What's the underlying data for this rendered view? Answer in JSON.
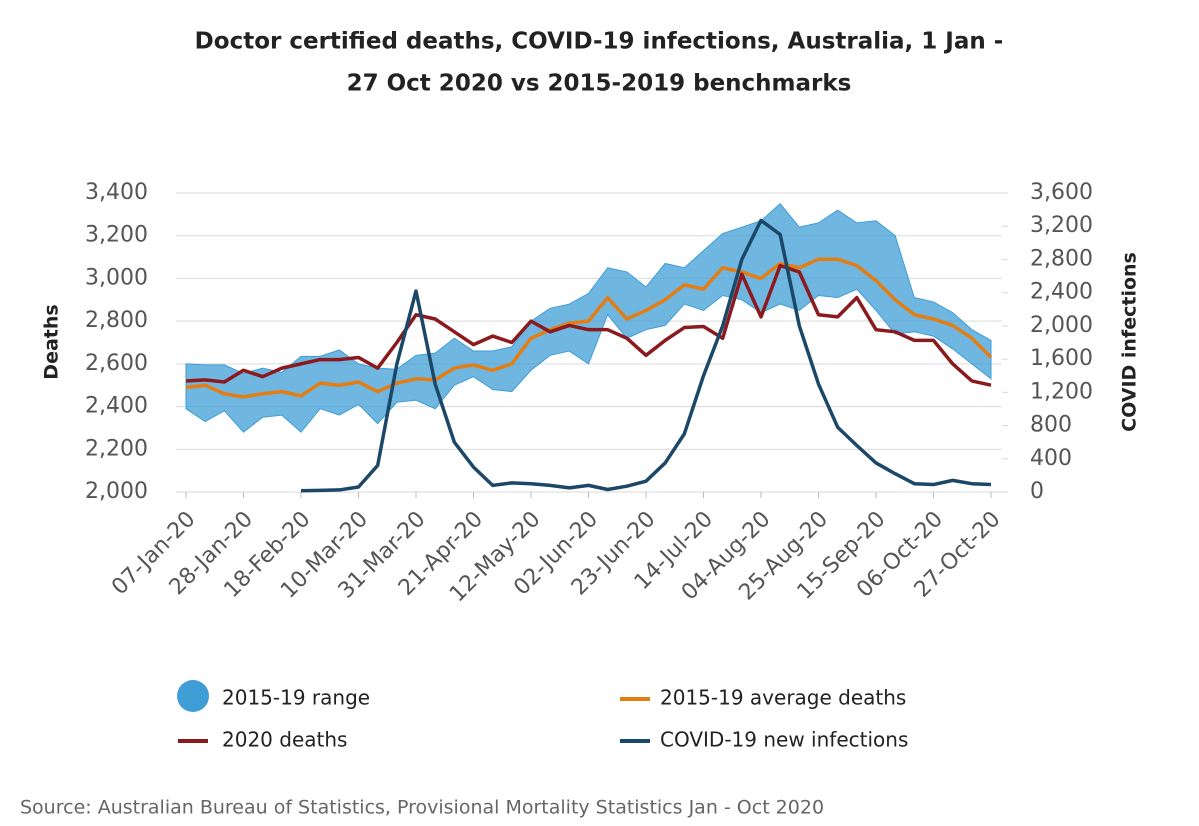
{
  "chart_data": {
    "type": "line",
    "title": "Doctor certified deaths, COVID-19 infections, Australia, 1 Jan -",
    "title_line2": "27 Oct 2020 vs 2015-2019 benchmarks",
    "ylabel": "Deaths",
    "y2label": "COVID infections",
    "source": "Source: Australian Bureau of Statistics, Provisional Mortality Statistics Jan - Oct 2020",
    "categories": [
      "07-Jan-20",
      null,
      null,
      "28-Jan-20",
      null,
      null,
      "18-Feb-20",
      null,
      null,
      "10-Mar-20",
      null,
      null,
      "31-Mar-20",
      null,
      null,
      "21-Apr-20",
      null,
      null,
      "12-May-20",
      null,
      null,
      "02-Jun-20",
      null,
      null,
      "23-Jun-20",
      null,
      null,
      "14-Jul-20",
      null,
      null,
      "04-Aug-20",
      null,
      null,
      "25-Aug-20",
      null,
      null,
      "15-Sep-20",
      null,
      null,
      "06-Oct-20",
      null,
      null,
      "27-Oct-20"
    ],
    "ylim": [
      2000,
      3400
    ],
    "yticks": [
      {
        "value": 2000,
        "label": "2,000"
      },
      {
        "value": 2200,
        "label": "2,200"
      },
      {
        "value": 2400,
        "label": "2,400"
      },
      {
        "value": 2600,
        "label": "2,600"
      },
      {
        "value": 2800,
        "label": "2,800"
      },
      {
        "value": 3000,
        "label": "3,000"
      },
      {
        "value": 3200,
        "label": "3,200"
      },
      {
        "value": 3400,
        "label": "3,400"
      }
    ],
    "y2lim": [
      0,
      3600
    ],
    "y2ticks": [
      0,
      400,
      800,
      {
        "value": 1200,
        "label": "1,200"
      },
      {
        "value": 1600,
        "label": "1,600"
      },
      {
        "value": 2000,
        "label": "2,000"
      },
      {
        "value": 2400,
        "label": "2,400"
      },
      {
        "value": 2800,
        "label": "2,800"
      },
      {
        "value": 3200,
        "label": "3,200"
      },
      {
        "value": 3600,
        "label": "3,600"
      }
    ],
    "range": {
      "name": "2015-19 range",
      "color": "#3f9ed6",
      "high": [
        2600,
        2595,
        2595,
        2555,
        2580,
        2560,
        2635,
        2635,
        2665,
        2600,
        2580,
        2575,
        2640,
        2650,
        2720,
        2660,
        2660,
        2680,
        2800,
        2860,
        2880,
        2930,
        3050,
        3030,
        2960,
        3070,
        3050,
        3130,
        3210,
        3240,
        3270,
        3350,
        3240,
        3260,
        3320,
        3260,
        3270,
        3200,
        2910,
        2890,
        2840,
        2760,
        2710
      ],
      "low": [
        2390,
        2330,
        2380,
        2280,
        2350,
        2360,
        2280,
        2390,
        2360,
        2410,
        2320,
        2420,
        2430,
        2390,
        2500,
        2540,
        2480,
        2470,
        2570,
        2640,
        2660,
        2600,
        2830,
        2720,
        2760,
        2780,
        2880,
        2850,
        2920,
        2900,
        2840,
        2880,
        2850,
        2920,
        2910,
        2950,
        2850,
        2740,
        2750,
        2730,
        2670,
        2600,
        2530
      ]
    },
    "series": [
      {
        "name": "2015-19 average deaths",
        "color": "#e47d12",
        "values": [
          2490,
          2500,
          2460,
          2445,
          2460,
          2470,
          2450,
          2510,
          2500,
          2515,
          2470,
          2510,
          2530,
          2525,
          2580,
          2595,
          2570,
          2600,
          2720,
          2760,
          2790,
          2800,
          2910,
          2810,
          2850,
          2900,
          2970,
          2950,
          3050,
          3030,
          3000,
          3070,
          3050,
          3090,
          3090,
          3060,
          2990,
          2900,
          2830,
          2810,
          2780,
          2720,
          2630
        ]
      },
      {
        "name": "2020 deaths",
        "color": "#8b1a1f",
        "values": [
          2520,
          2525,
          2515,
          2570,
          2540,
          2580,
          2600,
          2620,
          2620,
          2630,
          2580,
          2700,
          2830,
          2810,
          2750,
          2690,
          2730,
          2700,
          2800,
          2750,
          2780,
          2760,
          2760,
          2720,
          2640,
          2710,
          2770,
          2775,
          2720,
          3020,
          2820,
          3060,
          3030,
          2830,
          2820,
          2910,
          2760,
          2750,
          2710,
          2710,
          2600,
          2520,
          2500
        ]
      },
      {
        "name": "COVID-19 new infections",
        "color": "#1b4868",
        "axis": "y2",
        "values": [
          null,
          null,
          null,
          null,
          null,
          null,
          15,
          20,
          25,
          60,
          320,
          1540,
          2420,
          1300,
          600,
          300,
          80,
          110,
          100,
          80,
          50,
          80,
          30,
          70,
          130,
          350,
          700,
          1400,
          2000,
          2800,
          3270,
          3100,
          2000,
          1300,
          780,
          560,
          350,
          220,
          100,
          90,
          140,
          100,
          90
        ]
      }
    ]
  }
}
